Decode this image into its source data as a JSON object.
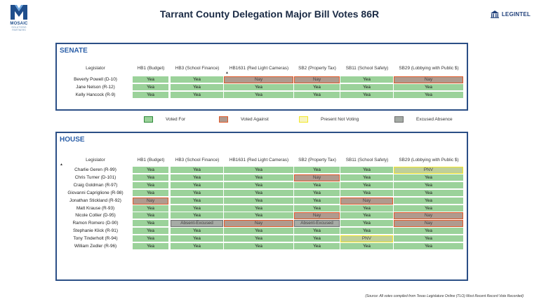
{
  "title": "Tarrant County Delegation Major Bill Votes 86R",
  "logo_left": {
    "name": "MOSAIC",
    "sub": "SOLUTIONS PARTNERS",
    "icon": "mosaic-m-icon",
    "color": "#1f4e8c"
  },
  "logo_right": {
    "text": "LEGINTEL",
    "icon": "capitol-building-icon",
    "color": "#1f3f7a"
  },
  "columns": [
    "Legislator",
    "HB1 (Budget)",
    "HB3 (School Finance)",
    "HB1631 (Red Light Cameras)",
    "SB2 (Property Tax)",
    "SB11 (School Safety)",
    "SB29 (Lobbying with Public $)"
  ],
  "labels": {
    "yea": "Yea",
    "nay": "Nay",
    "pnv": "PNV",
    "absent": "Absent-Excused"
  },
  "senate": {
    "heading": "SENATE",
    "rows": [
      {
        "name": "Beverly Powell (D-10)",
        "votes": [
          "Yea",
          "Yea",
          "Nay",
          "Nay",
          "Yea",
          "Nay"
        ]
      },
      {
        "name": "Jane Nelson (R-12)",
        "votes": [
          "Yea",
          "Yea",
          "Yea",
          "Yea",
          "Yea",
          "Yea"
        ]
      },
      {
        "name": "Kelly Hancock (R-9)",
        "votes": [
          "Yea",
          "Yea",
          "Yea",
          "Yea",
          "Yea",
          "Yea"
        ]
      }
    ]
  },
  "legend": [
    {
      "label": "Voted For",
      "fill": "#9bd29a",
      "border": "#2e8a3a"
    },
    {
      "label": "Voted Against",
      "fill": "#b09a8e",
      "border": "#e05a2a"
    },
    {
      "label": "Present Not Voting",
      "fill": "#f7f4c0",
      "border": "#f2e72a"
    },
    {
      "label": "Excused Absence",
      "fill": "#a5aba5",
      "border": "#6f6f6f"
    }
  ],
  "house": {
    "heading": "HOUSE",
    "rows": [
      {
        "name": "Charlie Geren (R-99)",
        "votes": [
          "Yea",
          "Yea",
          "Yea",
          "Yea",
          "Yea",
          "PNV"
        ]
      },
      {
        "name": "Chris Turner (D-101)",
        "votes": [
          "Yea",
          "Yea",
          "Yea",
          "Nay",
          "Yea",
          "Yea"
        ]
      },
      {
        "name": "Craig Goldman (R-97)",
        "votes": [
          "Yea",
          "Yea",
          "Yea",
          "Yea",
          "Yea",
          "Yea"
        ]
      },
      {
        "name": "Giovanni Capriglione (R-98)",
        "votes": [
          "Yea",
          "Yea",
          "Yea",
          "Yea",
          "Yea",
          "Yea"
        ]
      },
      {
        "name": "Jonathan Stickland (R-92)",
        "votes": [
          "Nay",
          "Yea",
          "Yea",
          "Yea",
          "Nay",
          "Yea"
        ]
      },
      {
        "name": "Matt Krause (R-93)",
        "votes": [
          "Yea",
          "Yea",
          "Yea",
          "Yea",
          "Yea",
          "Yea"
        ]
      },
      {
        "name": "Nicole Collier (D-95)",
        "votes": [
          "Yea",
          "Yea",
          "Yea",
          "Nay",
          "Yea",
          "Nay"
        ]
      },
      {
        "name": "Ramon Romero (D-90)",
        "votes": [
          "Yea",
          "Absent-Excused",
          "Nay",
          "Absent-Excused",
          "Yea",
          "Nay"
        ]
      },
      {
        "name": "Stephanie Klick (R-91)",
        "votes": [
          "Yea",
          "Yea",
          "Yea",
          "Yea",
          "Yea",
          "Yea"
        ]
      },
      {
        "name": "Tony Tinderholt (R-94)",
        "votes": [
          "Yea",
          "Yea",
          "Yea",
          "Yea",
          "PNV",
          "Yea"
        ]
      },
      {
        "name": "William Zedler (R-96)",
        "votes": [
          "Yea",
          "Yea",
          "Yea",
          "Yea",
          "Yea",
          "Yea"
        ]
      }
    ]
  },
  "source": "(Source: All votes compiled from Texas Legislature Online (TLO) Most Recent Record Vote Recorded)"
}
